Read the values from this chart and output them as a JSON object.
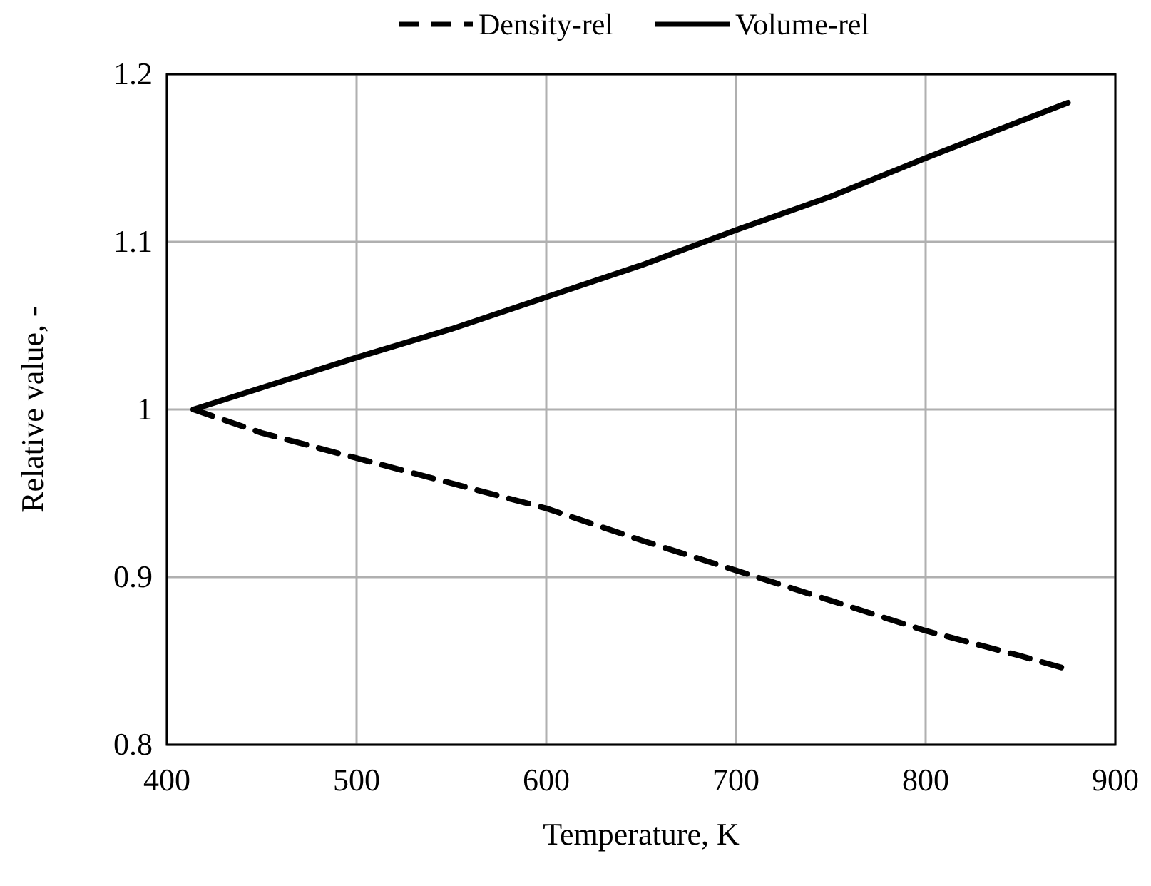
{
  "chart_data": {
    "type": "line",
    "xlabel": "Temperature, K",
    "ylabel": "Relative value, -",
    "x": [
      414,
      450,
      500,
      550,
      600,
      650,
      700,
      750,
      800,
      850,
      875
    ],
    "series": [
      {
        "name": "Density-rel",
        "color": "#000000",
        "line_style": "dashed",
        "values": [
          1.0,
          0.986,
          0.971,
          0.956,
          0.941,
          0.922,
          0.904,
          0.886,
          0.868,
          0.853,
          0.845
        ]
      },
      {
        "name": "Volume-rel",
        "color": "#000000",
        "line_style": "solid",
        "values": [
          1.0,
          1.013,
          1.031,
          1.048,
          1.067,
          1.086,
          1.107,
          1.127,
          1.15,
          1.172,
          1.183
        ]
      }
    ],
    "xlim": [
      400,
      900
    ],
    "xticks": [
      400,
      500,
      600,
      700,
      800,
      900
    ],
    "ylim": [
      0.8,
      1.2
    ],
    "yticks": [
      0.8,
      0.9,
      1,
      1.1,
      1.2
    ],
    "grid": true,
    "legend": "top",
    "marker": "none"
  }
}
